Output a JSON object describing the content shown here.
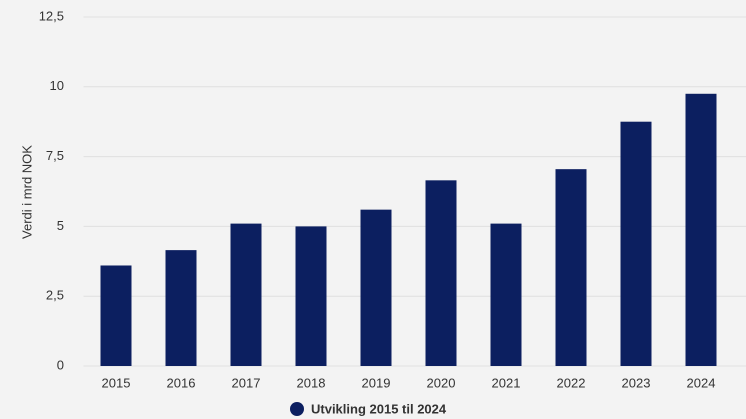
{
  "chart_data": {
    "type": "bar",
    "y_label": "Verdi i mrd NOK",
    "categories": [
      "2015",
      "2016",
      "2017",
      "2018",
      "2019",
      "2020",
      "2021",
      "2022",
      "2023",
      "2024"
    ],
    "series": [
      {
        "name": "Utvikling 2015 til 2024",
        "color": "#0c1f60",
        "values": [
          3.6,
          4.15,
          5.1,
          5.0,
          5.6,
          6.65,
          5.1,
          7.05,
          8.75,
          9.75
        ]
      }
    ],
    "ylim": [
      0,
      12.5
    ],
    "yticks": [
      0,
      {
        "value": 2.5,
        "label": "2,5"
      },
      5,
      {
        "value": 7.5,
        "label": "7,5"
      },
      10,
      {
        "value": 12.5,
        "label": "12,5"
      }
    ],
    "grid": true,
    "legend": "bottom"
  }
}
